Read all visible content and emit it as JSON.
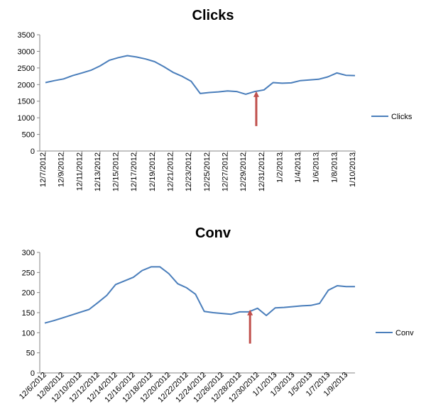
{
  "chart_data": [
    {
      "type": "line",
      "title": "Clicks",
      "xlabel": "",
      "ylabel": "",
      "ylim": [
        0,
        3500
      ],
      "yticks": [
        0,
        500,
        1000,
        1500,
        2000,
        2500,
        3000,
        3500
      ],
      "grid": false,
      "legend": "right",
      "x_tick_labels": [
        "12/7/2012",
        "12/9/2012",
        "12/11/2012",
        "12/13/2012",
        "12/15/2012",
        "12/17/2012",
        "12/19/2012",
        "12/21/2012",
        "12/23/2012",
        "12/25/2012",
        "12/27/2012",
        "12/29/2012",
        "12/31/2012",
        "1/2/2013",
        "1/4/2013",
        "1/6/2013",
        "1/8/2013",
        "1/10/2013"
      ],
      "x": [
        "12/7/2012",
        "12/8/2012",
        "12/9/2012",
        "12/10/2012",
        "12/11/2012",
        "12/12/2012",
        "12/13/2012",
        "12/14/2012",
        "12/15/2012",
        "12/16/2012",
        "12/17/2012",
        "12/18/2012",
        "12/19/2012",
        "12/20/2012",
        "12/21/2012",
        "12/22/2012",
        "12/23/2012",
        "12/24/2012",
        "12/25/2012",
        "12/26/2012",
        "12/27/2012",
        "12/28/2012",
        "12/29/2012",
        "12/30/2012",
        "12/31/2012",
        "1/1/2013",
        "1/2/2013",
        "1/3/2013",
        "1/4/2013",
        "1/5/2013",
        "1/6/2013",
        "1/7/2013",
        "1/8/2013",
        "1/9/2013",
        "1/10/2013"
      ],
      "series": [
        {
          "name": "Clicks",
          "color": "#4a7ebb",
          "values": [
            2060,
            2120,
            2170,
            2270,
            2350,
            2430,
            2560,
            2730,
            2810,
            2870,
            2830,
            2770,
            2690,
            2540,
            2370,
            2250,
            2100,
            1730,
            1760,
            1780,
            1810,
            1790,
            1710,
            1790,
            1840,
            2060,
            2040,
            2050,
            2120,
            2140,
            2160,
            2230,
            2350,
            2280,
            2270
          ]
        }
      ],
      "arrow": {
        "x": "12/30/2012",
        "y_from": 750,
        "y_to": 1840,
        "color": "#c0504d"
      }
    },
    {
      "type": "line",
      "title": "Conv",
      "xlabel": "",
      "ylabel": "",
      "ylim": [
        0,
        300
      ],
      "yticks": [
        0,
        50,
        100,
        150,
        200,
        250,
        300
      ],
      "grid": false,
      "legend": "right",
      "x_tick_labels": [
        "12/6/2012",
        "12/8/2012",
        "12/10/2012",
        "12/12/2012",
        "12/14/2012",
        "12/16/2012",
        "12/18/2012",
        "12/20/2012",
        "12/22/2012",
        "12/24/2012",
        "12/26/2012",
        "12/28/2012",
        "12/30/2012",
        "1/1/2013",
        "1/3/2013",
        "1/5/2013",
        "1/7/2013",
        "1/9/2013"
      ],
      "x": [
        "12/6/2012",
        "12/7/2012",
        "12/8/2012",
        "12/9/2012",
        "12/10/2012",
        "12/11/2012",
        "12/12/2012",
        "12/13/2012",
        "12/14/2012",
        "12/15/2012",
        "12/16/2012",
        "12/17/2012",
        "12/18/2012",
        "12/19/2012",
        "12/20/2012",
        "12/21/2012",
        "12/22/2012",
        "12/23/2012",
        "12/24/2012",
        "12/25/2012",
        "12/26/2012",
        "12/27/2012",
        "12/28/2012",
        "12/29/2012",
        "12/30/2012",
        "12/31/2012",
        "1/1/2013",
        "1/2/2013",
        "1/3/2013",
        "1/4/2013",
        "1/5/2013",
        "1/6/2013",
        "1/7/2013",
        "1/8/2013",
        "1/9/2013",
        "1/10/2013"
      ],
      "series": [
        {
          "name": "Conv",
          "color": "#4a7ebb",
          "values": [
            124,
            130,
            137,
            144,
            151,
            158,
            175,
            193,
            220,
            229,
            238,
            255,
            264,
            264,
            247,
            222,
            212,
            196,
            153,
            150,
            148,
            146,
            152,
            152,
            161,
            143,
            162,
            163,
            165,
            167,
            168,
            173,
            206,
            217,
            215,
            215
          ]
        }
      ],
      "arrow": {
        "x": "12/29/2012",
        "y_from": 73,
        "y_to": 161,
        "color": "#c0504d"
      }
    }
  ]
}
